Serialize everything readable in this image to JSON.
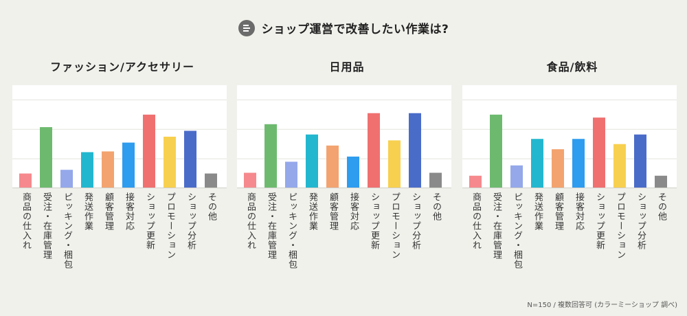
{
  "header": {
    "title": "ショップ運営で改善したい作業は?",
    "icon": "menu-lines-icon"
  },
  "footnote": "N=150 / 複数回答可 (カラーミーショップ 調べ)",
  "colors": [
    "#f6898d",
    "#6dba6f",
    "#94a8ea",
    "#23b7cf",
    "#f3a36f",
    "#2e9cef",
    "#f07070",
    "#f8d04f",
    "#4a6cc9",
    "#8a8a8a"
  ],
  "chart_data": [
    {
      "type": "bar",
      "title": "ファッション/アクセサリー",
      "categories": [
        "商品の仕入れ",
        "受注・在庫管理",
        "ピッキング・梱包",
        "発送作業",
        "顧客管理",
        "接客対応",
        "ショップ更新",
        "プロモーション",
        "ショップ分析",
        "その他"
      ],
      "values": [
        20,
        83,
        25,
        49,
        50,
        62,
        100,
        70,
        78,
        20
      ],
      "ylim": [
        0,
        140
      ],
      "grid": true
    },
    {
      "type": "bar",
      "title": "日用品",
      "categories": [
        "商品の仕入れ",
        "受注・在庫管理",
        "ピッキング・梱包",
        "発送作業",
        "顧客管理",
        "接客対応",
        "ショップ更新",
        "プロモーション",
        "ショップ分析",
        "その他"
      ],
      "values": [
        21,
        87,
        36,
        73,
        58,
        43,
        102,
        65,
        102,
        21
      ],
      "ylim": [
        0,
        140
      ],
      "grid": true
    },
    {
      "type": "bar",
      "title": "食品/飲料",
      "categories": [
        "商品の仕入れ",
        "受注・在庫管理",
        "ピッキング・梱包",
        "発送作業",
        "顧客管理",
        "接客対応",
        "ショップ更新",
        "プロモーション",
        "ショップ分析",
        "その他"
      ],
      "values": [
        17,
        100,
        31,
        67,
        53,
        67,
        96,
        60,
        73,
        17
      ],
      "ylim": [
        0,
        140
      ],
      "grid": true
    }
  ]
}
